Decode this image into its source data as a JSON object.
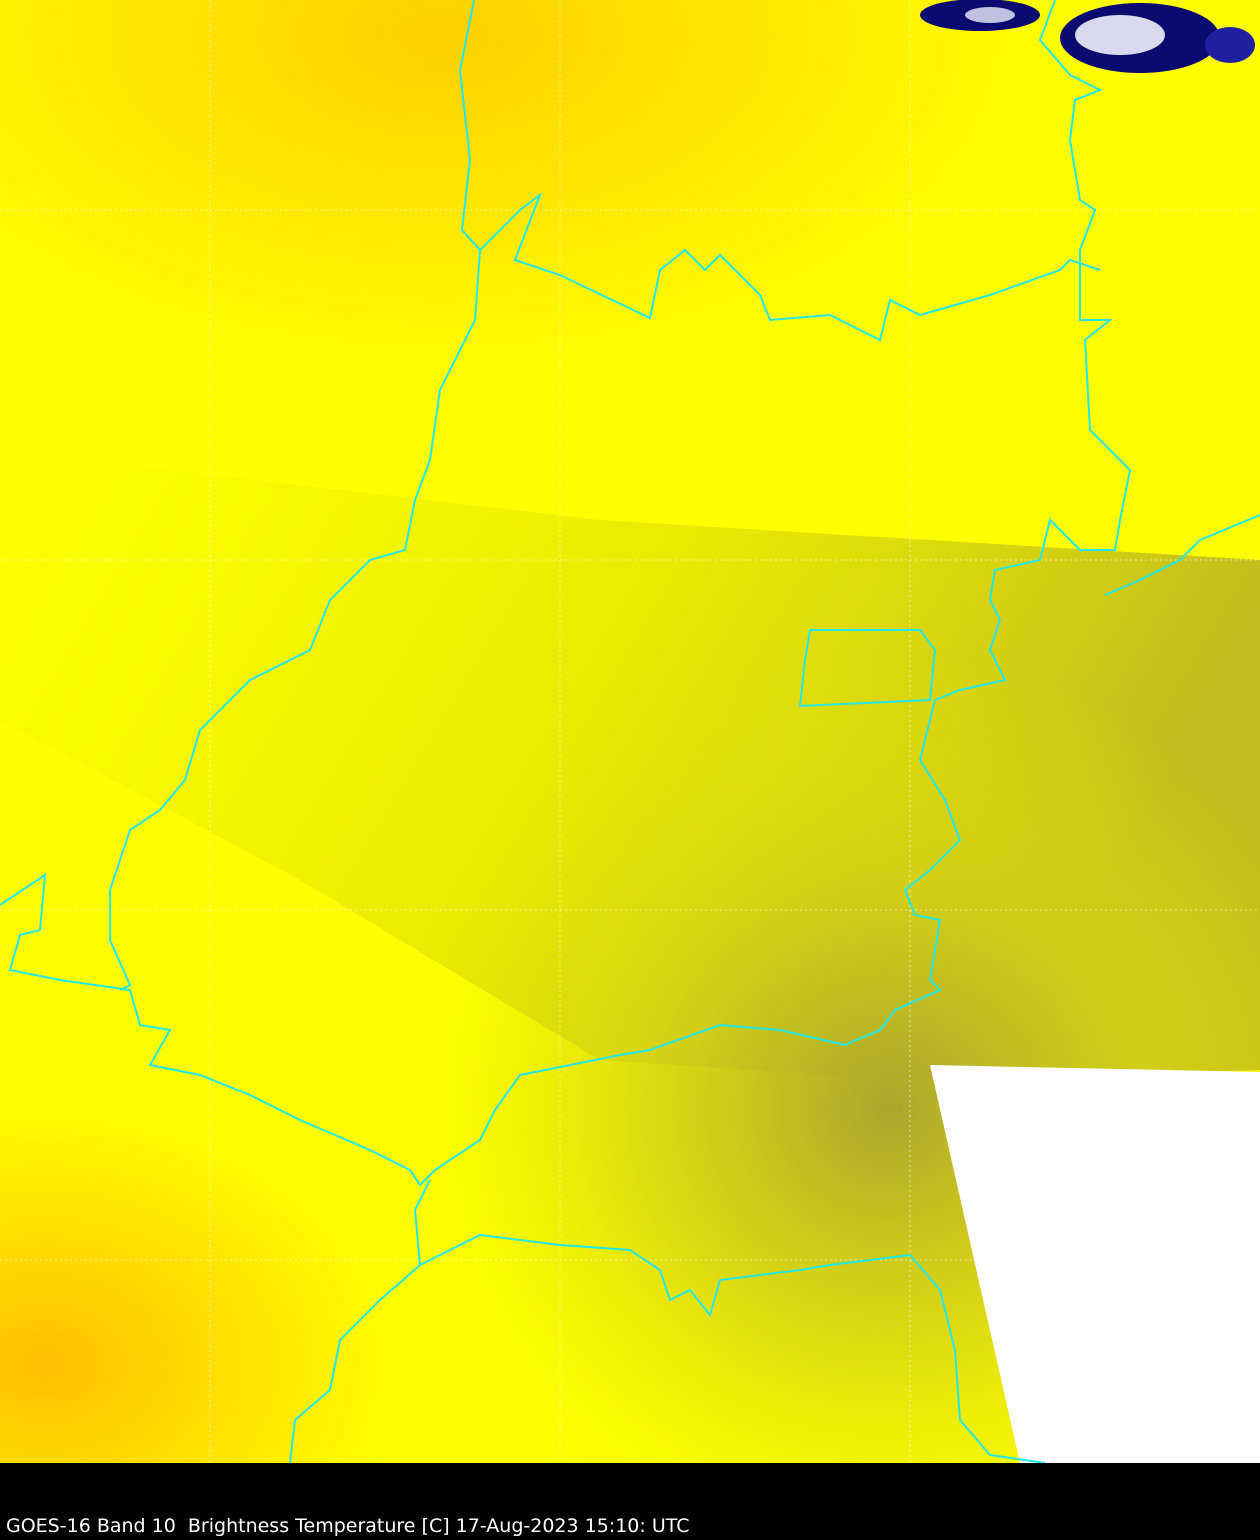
{
  "caption": "GOES-16 Band 10  Brightness Temperature [C] 17-Aug-2023 15:10: UTC",
  "colors": {
    "warm_orange": "#ffc000",
    "yellow": "#ffff00",
    "olive": "#a8a22c",
    "border": "#22e8e8",
    "no_data": "#ffffff",
    "cloud_dark": "#0a0a70",
    "cloud_light": "#e0e0f0",
    "gridline": "#ffffff"
  },
  "map": {
    "graticule": true,
    "no_data_region": true
  }
}
